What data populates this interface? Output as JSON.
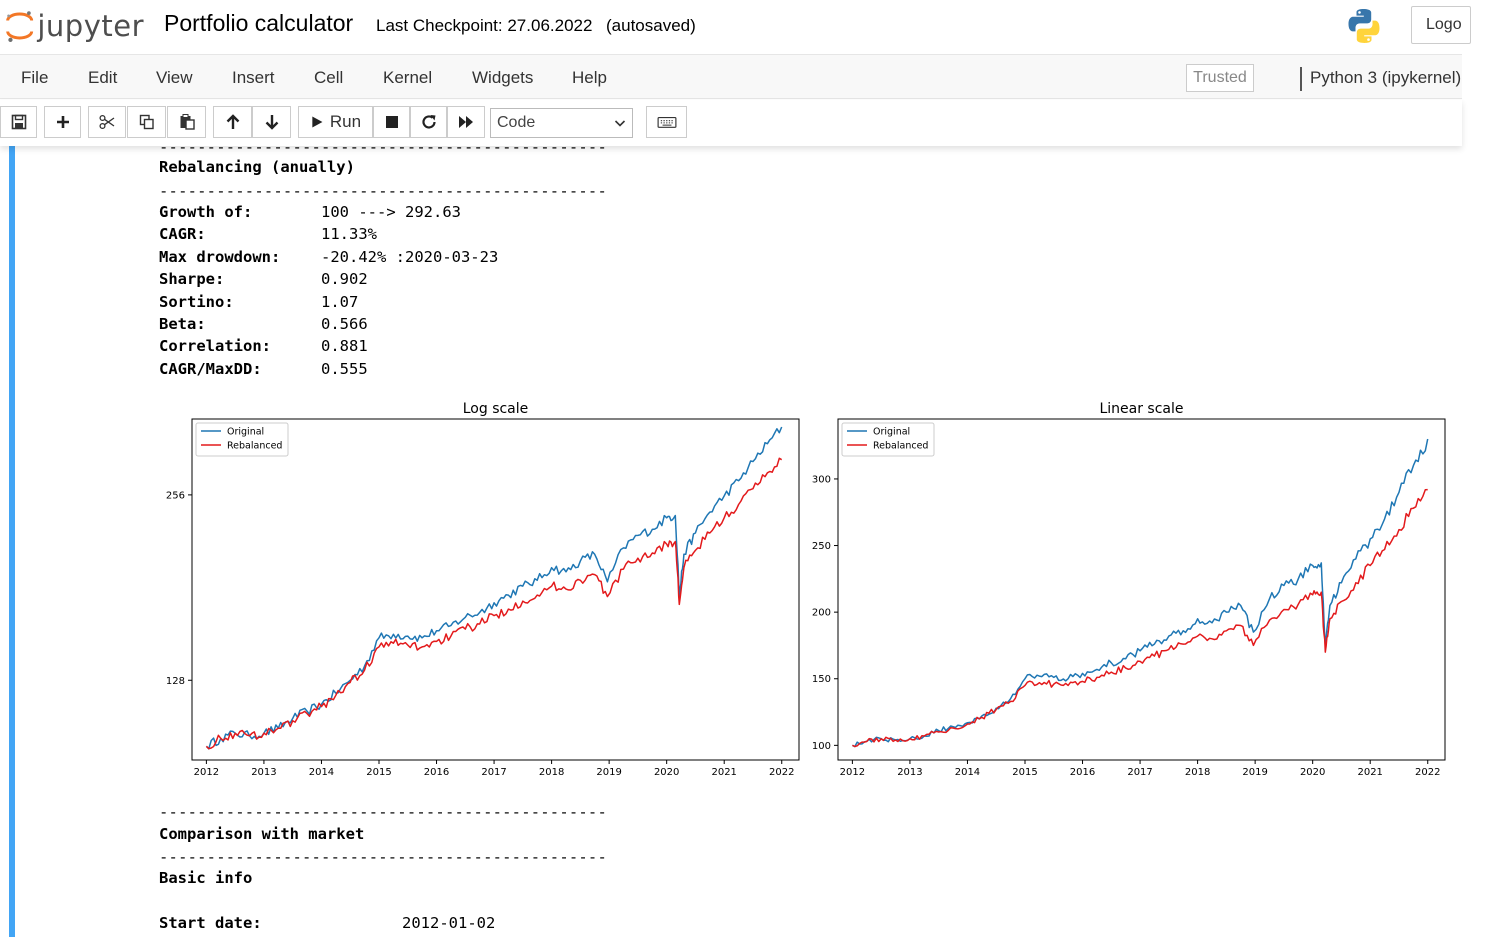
{
  "header": {
    "logo_text": "jupyter",
    "notebook_title": "Portfolio calculator",
    "checkpoint": "Last Checkpoint: 27.06.2022",
    "autosave": "(autosaved)",
    "logout_label": "Logo"
  },
  "menubar": {
    "items": [
      "File",
      "Edit",
      "View",
      "Insert",
      "Cell",
      "Kernel",
      "Widgets",
      "Help"
    ],
    "trusted_label": "Trusted",
    "kernel_label": "Python 3 (ipykernel)"
  },
  "toolbar": {
    "run_label": "Run",
    "cell_type": "Code",
    "icons": [
      "save-icon",
      "plus-icon",
      "scissors-icon",
      "copy-icon",
      "paste-icon",
      "arrow-up-icon",
      "arrow-down-icon",
      "play-icon",
      "stop-icon",
      "restart-icon",
      "fast-forward-icon",
      "keyboard-icon"
    ]
  },
  "output": {
    "dashes": "-----------------------------------------------",
    "section_title": "Rebalancing (anually)",
    "stats": [
      {
        "label": "Growth of:",
        "value": "100 ---> 292.63"
      },
      {
        "label": "CAGR:",
        "value": "11.33%"
      },
      {
        "label": "Max drowdown:",
        "value": "-20.42% :2020-03-23"
      },
      {
        "label": "Sharpe:",
        "value": "0.902"
      },
      {
        "label": "Sortino:",
        "value": "1.07"
      },
      {
        "label": "Beta:",
        "value": "0.566"
      },
      {
        "label": "Correlation:",
        "value": "0.881"
      },
      {
        "label": "CAGR/MaxDD:",
        "value": "0.555"
      }
    ],
    "comparison_title": "Comparison with market",
    "basic_info_title": "Basic info",
    "start_date_label": "Start date:",
    "start_date_value": "2012-01-02"
  },
  "colors": {
    "original": "#1f77b4",
    "rebalanced": "#e31a1c",
    "cell_bar": "#42a5f5"
  },
  "chart_data": [
    {
      "type": "line",
      "title": "Log scale",
      "xlabel": "",
      "ylabel": "",
      "yscale": "log",
      "x_ticks": [
        "2012",
        "2013",
        "2014",
        "2015",
        "2016",
        "2017",
        "2018",
        "2019",
        "2020",
        "2021",
        "2022"
      ],
      "y_ticks": [
        128,
        256
      ],
      "xlim": [
        2011.75,
        2022.3
      ],
      "ylim": [
        95,
        340
      ],
      "legend": "upper-left",
      "grid": false,
      "series": [
        {
          "name": "Original",
          "color": "#1f77b4",
          "x": [
            2012.0,
            2012.25,
            2012.5,
            2012.75,
            2013.0,
            2013.25,
            2013.5,
            2013.75,
            2014.0,
            2014.25,
            2014.5,
            2014.75,
            2015.0,
            2015.25,
            2015.5,
            2015.75,
            2016.0,
            2016.25,
            2016.5,
            2016.75,
            2017.0,
            2017.25,
            2017.5,
            2017.75,
            2018.0,
            2018.25,
            2018.5,
            2018.75,
            2018.97,
            2019.25,
            2019.5,
            2019.75,
            2020.0,
            2020.15,
            2020.22,
            2020.3,
            2020.5,
            2020.75,
            2021.0,
            2021.25,
            2021.5,
            2021.75,
            2022.0
          ],
          "values": [
            100,
            103,
            105,
            104,
            105,
            107,
            111,
            114,
            117,
            122,
            128,
            135,
            150,
            152,
            151,
            150,
            154,
            157,
            162,
            165,
            171,
            176,
            182,
            186,
            195,
            192,
            200,
            205,
            185,
            210,
            220,
            225,
            235,
            237,
            175,
            205,
            222,
            240,
            255,
            270,
            290,
            310,
            330
          ]
        },
        {
          "name": "Rebalanced",
          "color": "#e31a1c",
          "x": [
            2012.0,
            2012.25,
            2012.5,
            2012.75,
            2013.0,
            2013.25,
            2013.5,
            2013.75,
            2014.0,
            2014.25,
            2014.5,
            2014.75,
            2015.0,
            2015.25,
            2015.5,
            2015.75,
            2016.0,
            2016.25,
            2016.5,
            2016.75,
            2017.0,
            2017.25,
            2017.5,
            2017.75,
            2018.0,
            2018.25,
            2018.5,
            2018.75,
            2018.97,
            2019.25,
            2019.5,
            2019.75,
            2020.0,
            2020.15,
            2020.22,
            2020.3,
            2020.5,
            2020.75,
            2021.0,
            2021.25,
            2021.5,
            2021.75,
            2022.0
          ],
          "values": [
            100,
            103,
            105,
            104,
            105,
            107,
            110,
            113,
            116,
            121,
            127,
            133,
            145,
            147,
            146,
            145,
            148,
            151,
            155,
            158,
            163,
            167,
            172,
            176,
            182,
            180,
            186,
            190,
            175,
            194,
            202,
            206,
            213,
            215,
            170,
            195,
            208,
            222,
            235,
            247,
            262,
            278,
            292
          ]
        }
      ]
    },
    {
      "type": "line",
      "title": "Linear scale",
      "xlabel": "",
      "ylabel": "",
      "yscale": "linear",
      "x_ticks": [
        "2012",
        "2013",
        "2014",
        "2015",
        "2016",
        "2017",
        "2018",
        "2019",
        "2020",
        "2021",
        "2022"
      ],
      "y_ticks": [
        100,
        150,
        200,
        250,
        300
      ],
      "xlim": [
        2011.75,
        2022.3
      ],
      "ylim": [
        89,
        345
      ],
      "legend": "upper-left",
      "grid": false,
      "series": [
        {
          "name": "Original",
          "color": "#1f77b4",
          "x": [
            2012.0,
            2012.25,
            2012.5,
            2012.75,
            2013.0,
            2013.25,
            2013.5,
            2013.75,
            2014.0,
            2014.25,
            2014.5,
            2014.75,
            2015.0,
            2015.25,
            2015.5,
            2015.75,
            2016.0,
            2016.25,
            2016.5,
            2016.75,
            2017.0,
            2017.25,
            2017.5,
            2017.75,
            2018.0,
            2018.25,
            2018.5,
            2018.75,
            2018.97,
            2019.25,
            2019.5,
            2019.75,
            2020.0,
            2020.15,
            2020.22,
            2020.3,
            2020.5,
            2020.75,
            2021.0,
            2021.25,
            2021.5,
            2021.75,
            2022.0
          ],
          "values": [
            100,
            103,
            105,
            104,
            105,
            107,
            111,
            114,
            117,
            122,
            128,
            135,
            150,
            152,
            151,
            150,
            154,
            157,
            162,
            165,
            171,
            176,
            182,
            186,
            195,
            192,
            200,
            205,
            185,
            210,
            220,
            225,
            235,
            237,
            175,
            205,
            222,
            240,
            255,
            270,
            290,
            310,
            330
          ]
        },
        {
          "name": "Rebalanced",
          "color": "#e31a1c",
          "x": [
            2012.0,
            2012.25,
            2012.5,
            2012.75,
            2013.0,
            2013.25,
            2013.5,
            2013.75,
            2014.0,
            2014.25,
            2014.5,
            2014.75,
            2015.0,
            2015.25,
            2015.5,
            2015.75,
            2016.0,
            2016.25,
            2016.5,
            2016.75,
            2017.0,
            2017.25,
            2017.5,
            2017.75,
            2018.0,
            2018.25,
            2018.5,
            2018.75,
            2018.97,
            2019.25,
            2019.5,
            2019.75,
            2020.0,
            2020.15,
            2020.22,
            2020.3,
            2020.5,
            2020.75,
            2021.0,
            2021.25,
            2021.5,
            2021.75,
            2022.0
          ],
          "values": [
            100,
            103,
            105,
            104,
            105,
            107,
            110,
            113,
            116,
            121,
            127,
            133,
            145,
            147,
            146,
            145,
            148,
            151,
            155,
            158,
            163,
            167,
            172,
            176,
            182,
            180,
            186,
            190,
            175,
            194,
            202,
            206,
            213,
            215,
            170,
            195,
            208,
            222,
            235,
            247,
            262,
            278,
            292
          ]
        }
      ]
    }
  ]
}
